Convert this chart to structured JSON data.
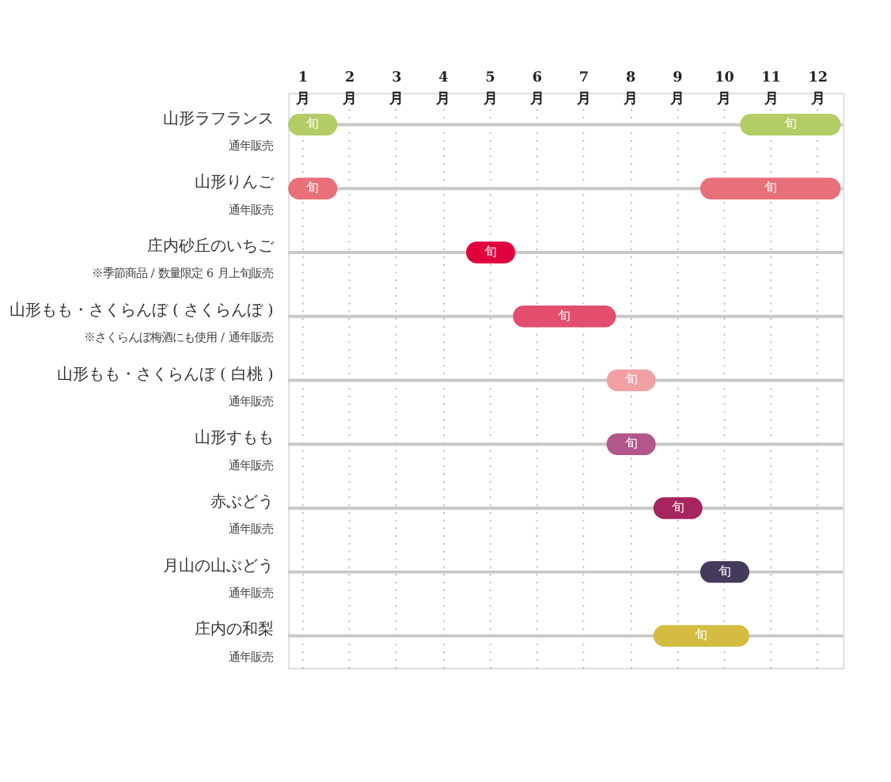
{
  "chart_data": {
    "type": "bar",
    "orientation": "horizontal",
    "grid": true,
    "categories": [
      "山形ラフランス",
      "山形りんご",
      "庄内砂丘のいちご",
      "山形もも・さくらんぼ ( さくらんぼ )",
      "山形もも・さくらんぼ ( 白桃 )",
      "山形すもも",
      "赤ぶどう",
      "月山の山ぶどう",
      "庄内の和梨"
    ],
    "series": [
      {
        "values": [
          2.15,
          3.0,
          1.05,
          2.2,
          1.05,
          1.05,
          1.05,
          1.05,
          2.05
        ],
        "base": [
          10.35,
          9.5,
          4.5,
          5.5,
          7.5,
          7.5,
          8.5,
          9.5,
          8.5
        ],
        "colors": [
          "#b3cc66",
          "#e8707a",
          "#e0003c",
          "#e34d6e",
          "#f2a1a3",
          "#b3578a",
          "#a6245f",
          "#433a5c",
          "#d4bb41"
        ],
        "value_labels": [
          "旬",
          "旬",
          "旬",
          "旬",
          "旬",
          "旬",
          "旬",
          "旬",
          "旬"
        ]
      },
      {
        "values": [
          1.05,
          1.05,
          null,
          null,
          null,
          null,
          null,
          null,
          null
        ],
        "base": [
          0.7,
          0.7,
          null,
          null,
          null,
          null,
          null,
          null,
          null
        ],
        "colors": [
          "#b3cc66",
          "#e8707a",
          null,
          null,
          null,
          null,
          null,
          null,
          null
        ],
        "value_labels": [
          "旬",
          "旬",
          null,
          null,
          null,
          null,
          null,
          null,
          null
        ]
      }
    ],
    "xlim": [
      0.7,
      12.55
    ],
    "xticks": [
      {
        "value": 1,
        "label": "1月"
      },
      {
        "value": 2,
        "label": "2月"
      },
      {
        "value": 3,
        "label": "3月"
      },
      {
        "value": 4,
        "label": "4月"
      },
      {
        "value": 5,
        "label": "5月"
      },
      {
        "value": 6,
        "label": "6月"
      },
      {
        "value": 7,
        "label": "7月"
      },
      {
        "value": 8,
        "label": "8月"
      },
      {
        "value": 9,
        "label": "9月"
      },
      {
        "value": 10,
        "label": "10月"
      },
      {
        "value": 11,
        "label": "11月"
      },
      {
        "value": 12,
        "label": "12月"
      }
    ],
    "annotations": [
      "通年販売",
      "通年販売",
      "※季節商品 / 数量限定 6 月上旬販売",
      "※さくらんぼ梅酒にも使用 / 通年販売",
      "通年販売",
      "通年販売",
      "通年販売",
      "通年販売",
      "通年販売"
    ]
  }
}
